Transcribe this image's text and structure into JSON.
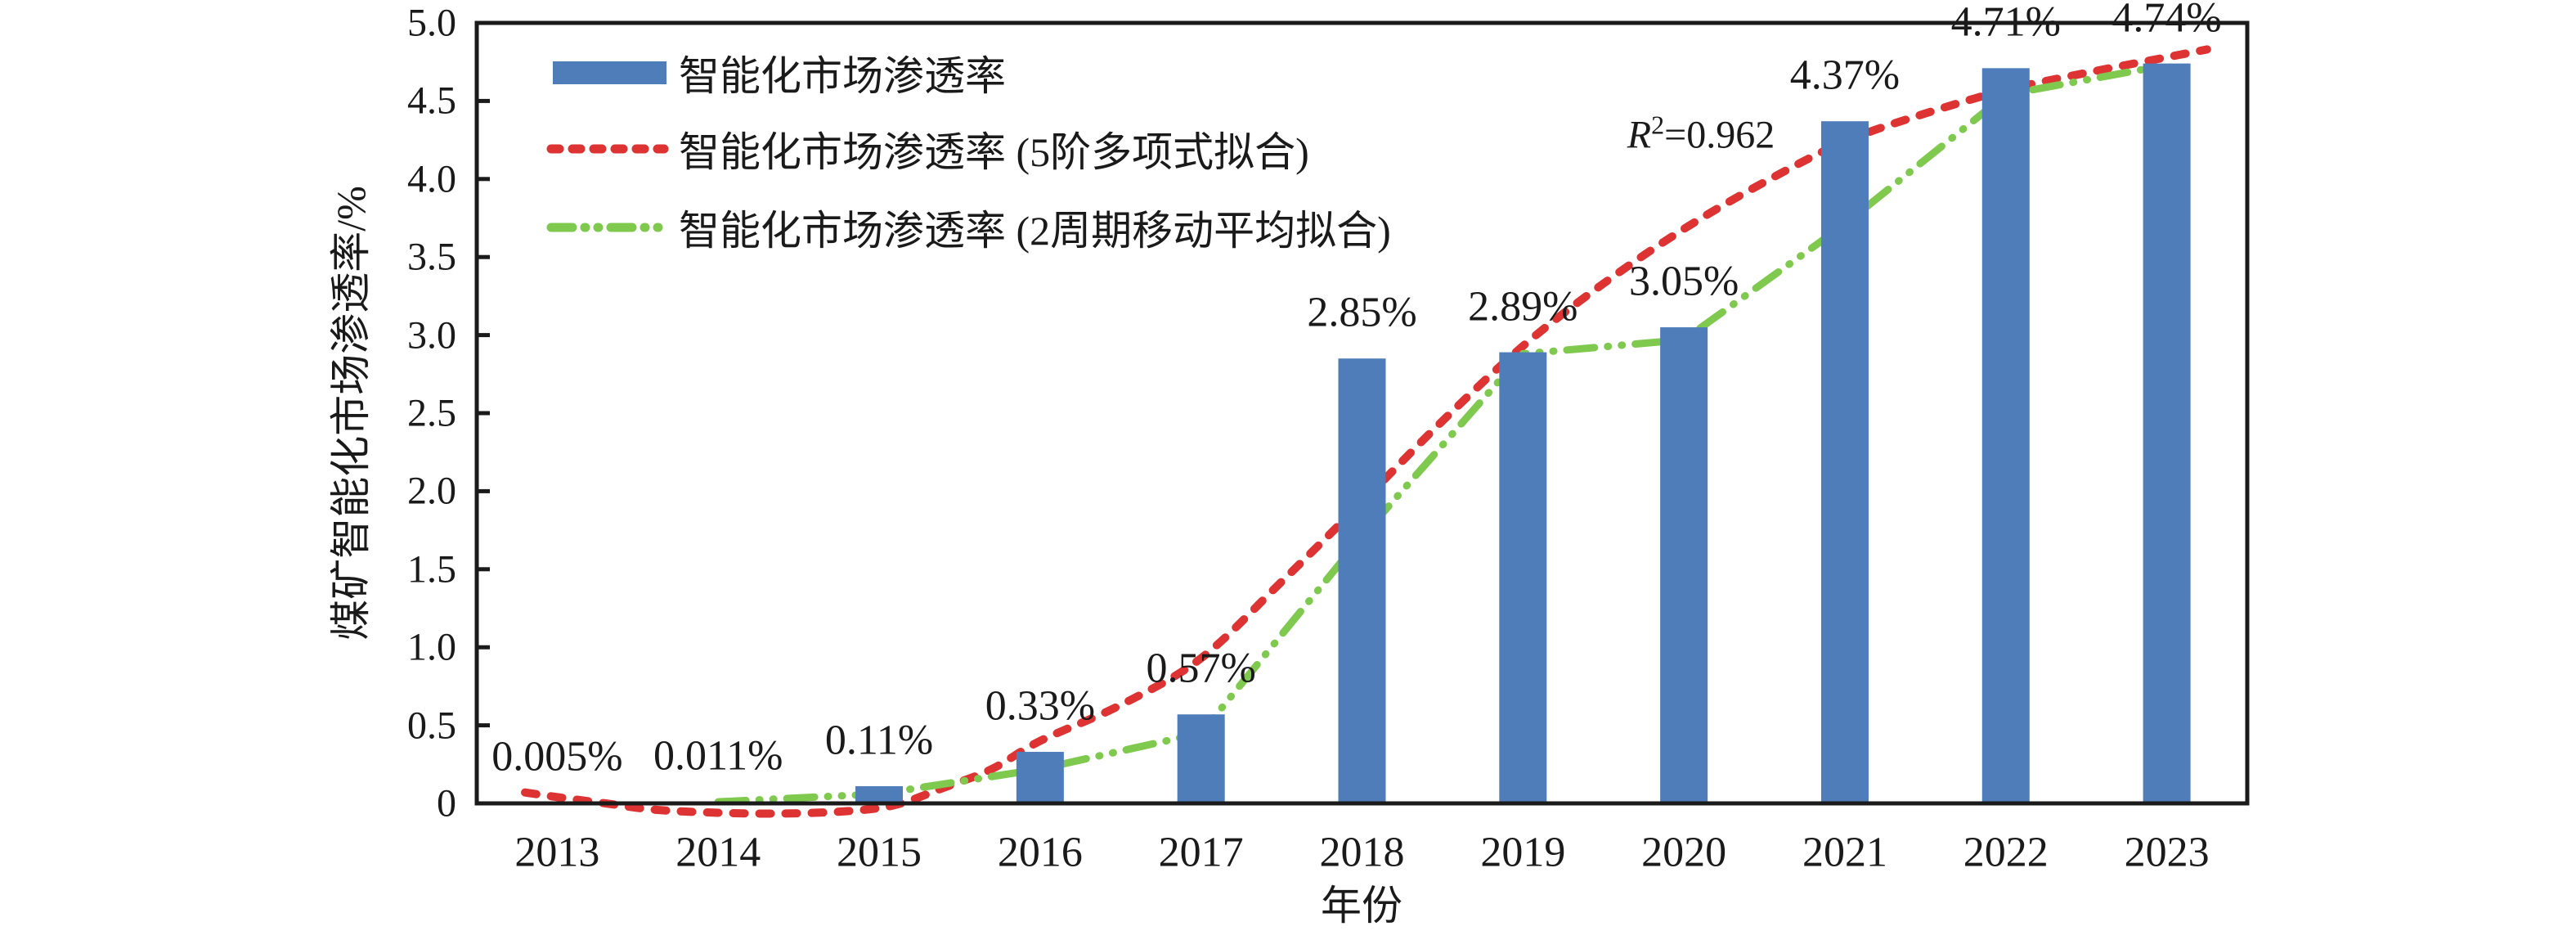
{
  "chart_data": {
    "type": "bar",
    "title": "",
    "xlabel": "年份",
    "ylabel": "煤矿智能化市场渗透率/%",
    "ylim": [
      0,
      5.0
    ],
    "grid": false,
    "legend_position": "top-left-inside",
    "categories": [
      "2013",
      "2014",
      "2015",
      "2016",
      "2017",
      "2018",
      "2019",
      "2020",
      "2021",
      "2022",
      "2023"
    ],
    "yticks": [
      "0",
      "0.5",
      "1.0",
      "1.5",
      "2.0",
      "2.5",
      "3.0",
      "3.5",
      "4.0",
      "4.5",
      "5.0"
    ],
    "ytick_values": [
      0,
      0.5,
      1.0,
      1.5,
      2.0,
      2.5,
      3.0,
      3.5,
      4.0,
      4.5,
      5.0
    ],
    "series": [
      {
        "name": "智能化市场渗透率",
        "type": "bar",
        "values": [
          0.005,
          0.011,
          0.11,
          0.33,
          0.57,
          2.85,
          2.89,
          3.05,
          4.37,
          4.71,
          4.74
        ],
        "data_labels": [
          "0.005%",
          "0.011%",
          "0.11%",
          "0.33%",
          "0.57%",
          "2.85%",
          "2.89%",
          "3.05%",
          "4.37%",
          "4.71%",
          "4.74%"
        ]
      },
      {
        "name": "智能化市场渗透率 (5阶多项式拟合)",
        "type": "line-smooth",
        "points": [
          [
            2012.8,
            0.07
          ],
          [
            2013,
            0.04
          ],
          [
            2013.3,
            0.0
          ],
          [
            2013.6,
            -0.04
          ],
          [
            2014,
            -0.06
          ],
          [
            2014.4,
            -0.065
          ],
          [
            2014.8,
            -0.05
          ],
          [
            2015.1,
            -0.01
          ],
          [
            2015.4,
            0.1
          ],
          [
            2015.7,
            0.22
          ],
          [
            2016,
            0.4
          ],
          [
            2016.5,
            0.63
          ],
          [
            2017,
            0.93
          ],
          [
            2017.5,
            1.42
          ],
          [
            2018,
            1.93
          ],
          [
            2018.5,
            2.45
          ],
          [
            2019,
            2.93
          ],
          [
            2019.5,
            3.33
          ],
          [
            2020,
            3.68
          ],
          [
            2020.5,
            3.98
          ],
          [
            2021,
            4.24
          ],
          [
            2021.5,
            4.42
          ],
          [
            2022,
            4.57
          ],
          [
            2022.5,
            4.68
          ],
          [
            2023,
            4.78
          ],
          [
            2023.25,
            4.83
          ]
        ]
      },
      {
        "name": "智能化市场渗透率 (2周期移动平均拟合)",
        "type": "line",
        "points": [
          [
            2014,
            0.01
          ],
          [
            2015,
            0.06
          ],
          [
            2016,
            0.22
          ],
          [
            2017,
            0.45
          ],
          [
            2018,
            1.71
          ],
          [
            2019,
            2.88
          ],
          [
            2020,
            2.97
          ],
          [
            2021,
            3.71
          ],
          [
            2022,
            4.54
          ],
          [
            2023,
            4.73
          ]
        ]
      }
    ],
    "annotation": {
      "r_symbol": "R",
      "r_sup": "2",
      "r_rest": "=0.962",
      "full": "R²=0.962"
    },
    "colors": {
      "bar": "#4e7dba",
      "poly_fit": "#dd3333",
      "moving_avg": "#7fc94e",
      "axis": "#1a1a1a",
      "text": "#1a1a1a",
      "background": "#ffffff"
    }
  },
  "legend": [
    {
      "label": "智能化市场渗透率",
      "swatch": "bar-swatch"
    },
    {
      "label": "智能化市场渗透率 (5阶多项式拟合)",
      "swatch": "dashed-line-swatch"
    },
    {
      "label": "智能化市场渗透率 (2周期移动平均拟合)",
      "swatch": "dashdot-line-swatch"
    }
  ]
}
